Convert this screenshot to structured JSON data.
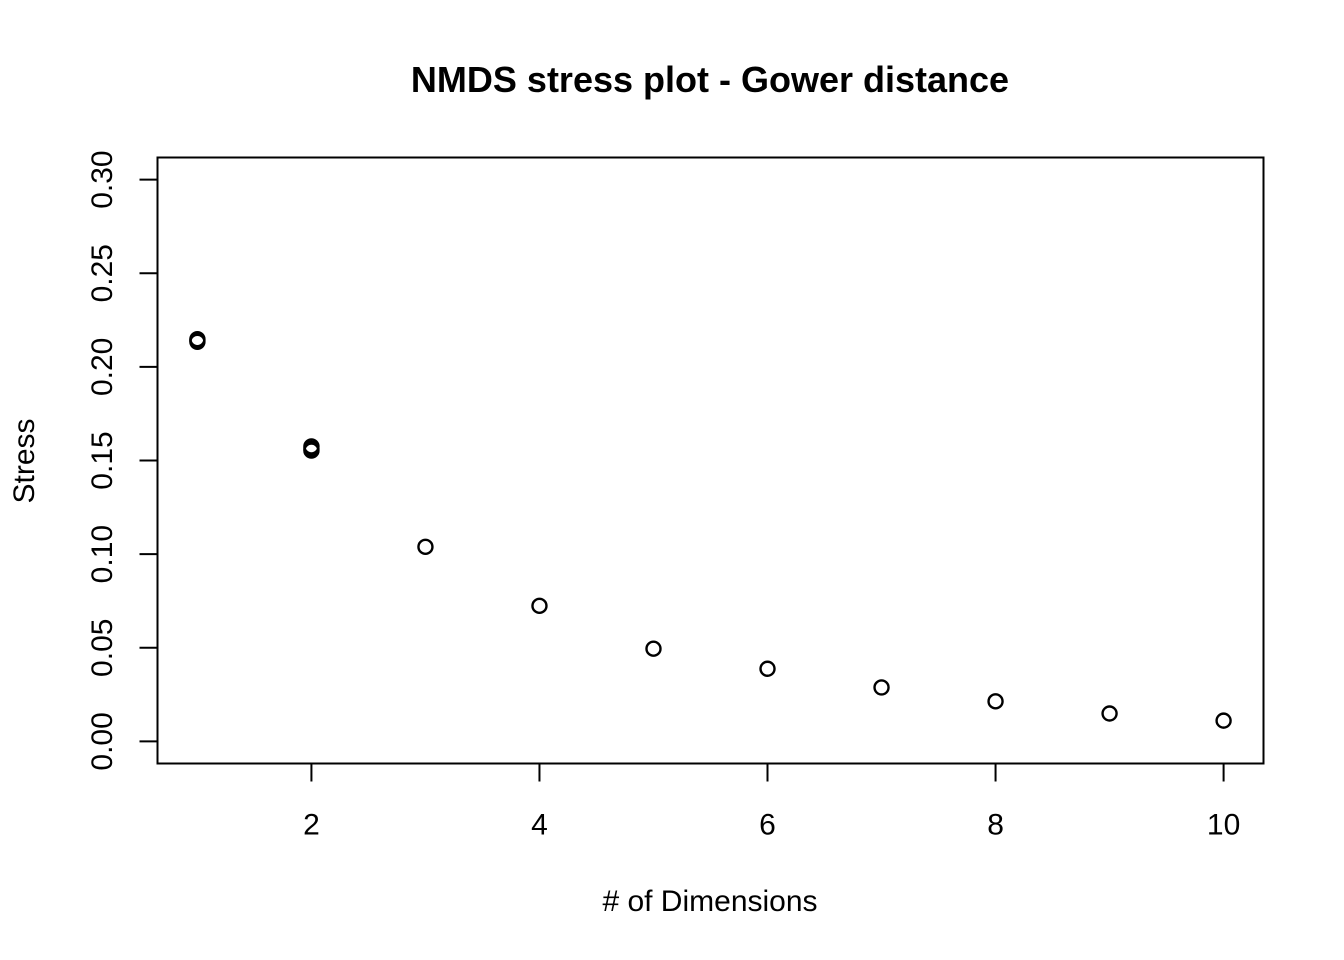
{
  "chart_data": {
    "type": "scatter",
    "title": "NMDS stress plot - Gower distance",
    "xlabel": "# of Dimensions",
    "ylabel": "Stress",
    "xlim": [
      0.65,
      10.35
    ],
    "ylim": [
      -0.0118,
      0.3118
    ],
    "x_ticks": [
      2,
      4,
      6,
      8,
      10
    ],
    "x_tick_labels": [
      "2",
      "4",
      "6",
      "8",
      "10"
    ],
    "y_ticks": [
      0.0,
      0.05,
      0.1,
      0.15,
      0.2,
      0.25,
      0.3
    ],
    "y_tick_labels": [
      "0.00",
      "0.05",
      "0.10",
      "0.15",
      "0.20",
      "0.25",
      "0.30"
    ],
    "grid": false,
    "marker": "open-circle",
    "marker_color": "#000000",
    "points": [
      {
        "x": 1,
        "y": 0.2148
      },
      {
        "x": 1,
        "y": 0.2141
      },
      {
        "x": 1,
        "y": 0.2134
      },
      {
        "x": 2,
        "y": 0.1575
      },
      {
        "x": 2,
        "y": 0.1563
      },
      {
        "x": 2,
        "y": 0.1553
      },
      {
        "x": 3,
        "y": 0.1039
      },
      {
        "x": 4,
        "y": 0.0724
      },
      {
        "x": 5,
        "y": 0.0495
      },
      {
        "x": 6,
        "y": 0.0388
      },
      {
        "x": 7,
        "y": 0.0288
      },
      {
        "x": 8,
        "y": 0.0214
      },
      {
        "x": 9,
        "y": 0.0149
      },
      {
        "x": 10,
        "y": 0.0111
      }
    ]
  }
}
